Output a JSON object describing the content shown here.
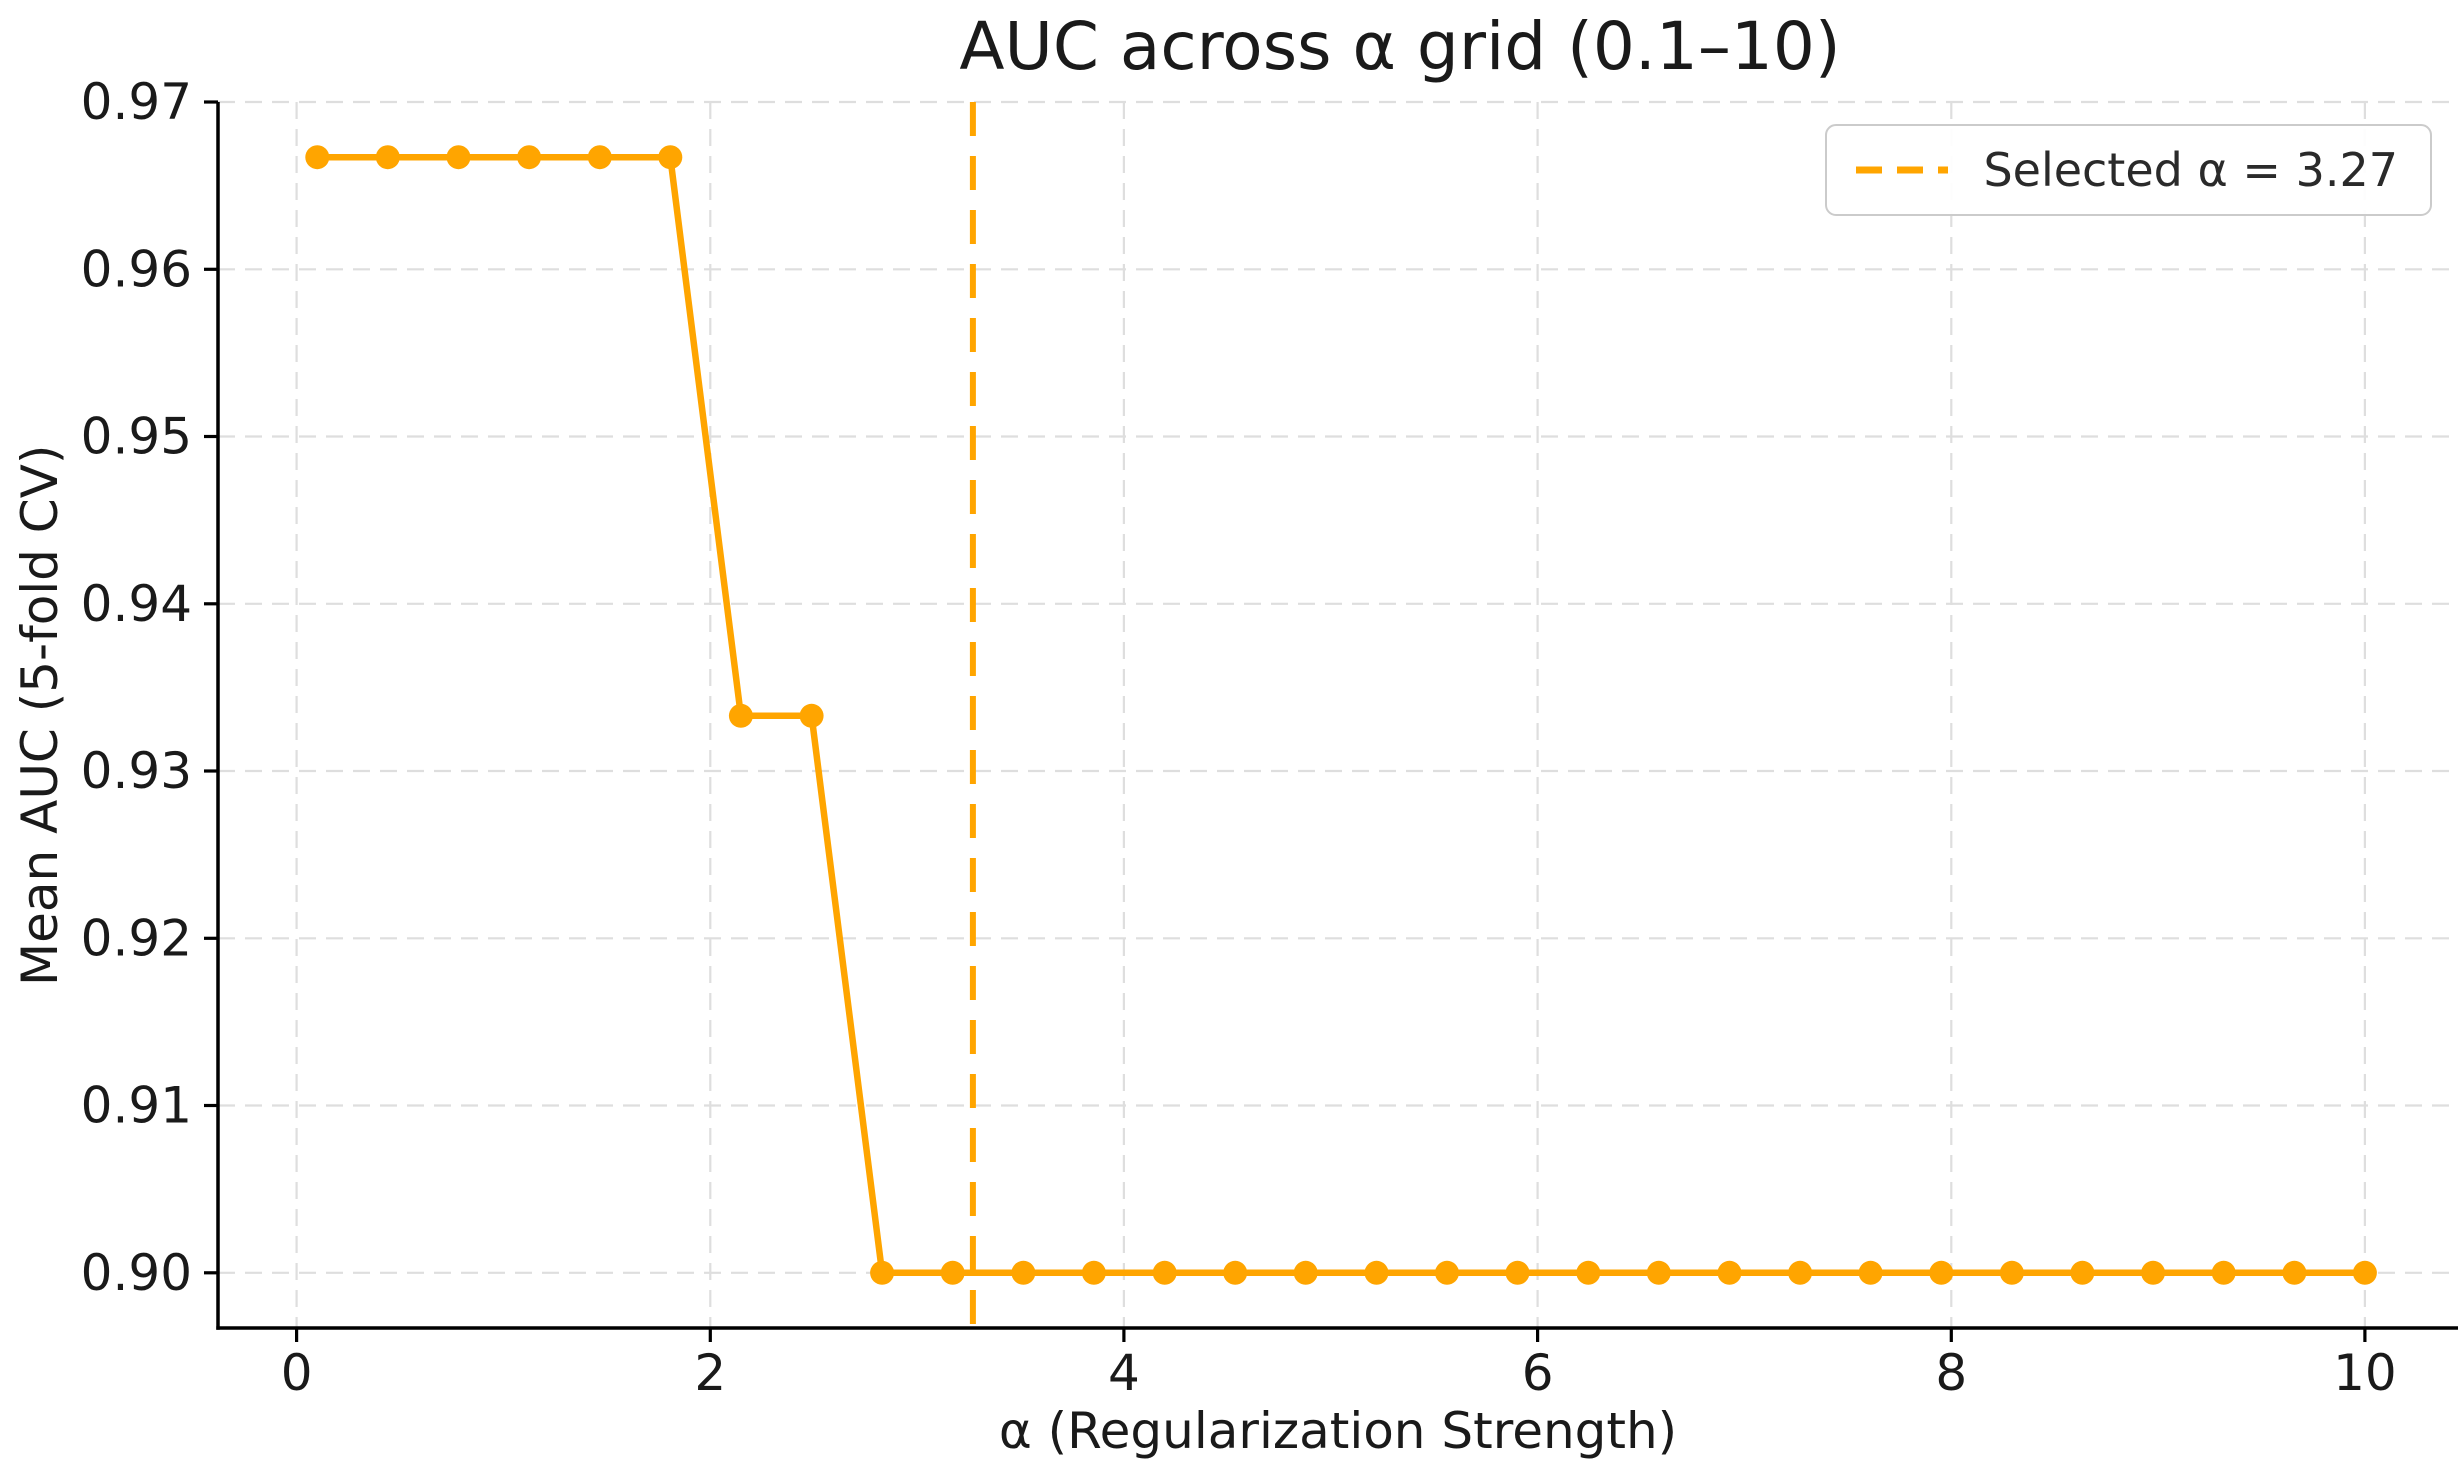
{
  "chart_data": {
    "type": "line",
    "title": "AUC across α grid (0.1–10)",
    "xlabel": "α (Regularization Strength)",
    "ylabel": "Mean AUC (5-fold CV)",
    "x": [
      0.1,
      0.441,
      0.783,
      1.124,
      1.466,
      1.807,
      2.148,
      2.49,
      2.831,
      3.172,
      3.514,
      3.855,
      4.197,
      4.538,
      4.879,
      5.221,
      5.562,
      5.903,
      6.245,
      6.586,
      6.928,
      7.269,
      7.61,
      7.952,
      8.293,
      8.634,
      8.976,
      9.317,
      9.659,
      10.0
    ],
    "y": [
      0.9667,
      0.9667,
      0.9667,
      0.9667,
      0.9667,
      0.9667,
      0.9333,
      0.9333,
      0.9,
      0.9,
      0.9,
      0.9,
      0.9,
      0.9,
      0.9,
      0.9,
      0.9,
      0.9,
      0.9,
      0.9,
      0.9,
      0.9,
      0.9,
      0.9,
      0.9,
      0.9,
      0.9,
      0.9,
      0.9,
      0.9
    ],
    "series_name": "Mean AUC",
    "marker": "circle",
    "xticks": [
      0,
      2,
      4,
      6,
      8,
      10
    ],
    "xtick_labels": [
      "0",
      "2",
      "4",
      "6",
      "8",
      "10"
    ],
    "yticks": [
      0.9,
      0.91,
      0.92,
      0.93,
      0.94,
      0.95,
      0.96,
      0.97
    ],
    "ytick_labels": [
      "0.90",
      "0.91",
      "0.92",
      "0.93",
      "0.94",
      "0.95",
      "0.96",
      "0.97"
    ],
    "xlim": [
      -0.38,
      10.45
    ],
    "ylim": [
      0.8967,
      0.97
    ],
    "grid": true,
    "grid_style": "dashed",
    "vline": {
      "x": 3.27,
      "style": "dashed"
    },
    "legend": {
      "position": "upper right",
      "entries": [
        {
          "label": "Selected α = 3.27",
          "style": "dashed"
        }
      ]
    },
    "colors": {
      "series": "#FFA500",
      "vline": "#FFA500",
      "grid": "#dedede",
      "text": "#1a1a1a",
      "spine": "#000000",
      "background": "#ffffff"
    }
  }
}
